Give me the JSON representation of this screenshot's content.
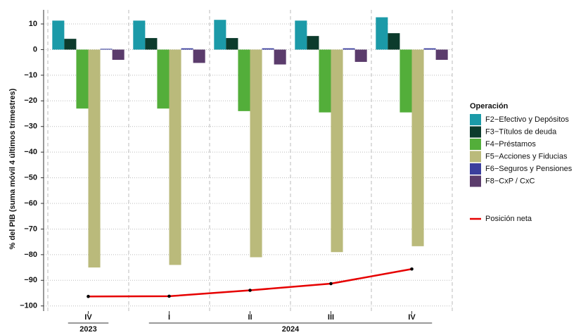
{
  "chart_data": {
    "type": "bar",
    "y_label": "% del PIB (suma móvil 4 últimos trimestres)",
    "legend_title": "Operación",
    "groups": [
      {
        "label": "2023",
        "categories": [
          "IV"
        ]
      },
      {
        "label": "2024",
        "categories": [
          "I",
          "II",
          "III",
          "IV"
        ]
      }
    ],
    "ylim": [
      -102,
      15.5
    ],
    "yticks": [
      {
        "value": 10,
        "label": "10"
      },
      {
        "value": 0,
        "label": "0"
      },
      {
        "value": -10,
        "label": "−10"
      },
      {
        "value": -20,
        "label": "−20"
      },
      {
        "value": -30,
        "label": "−30"
      },
      {
        "value": -40,
        "label": "−40"
      },
      {
        "value": -50,
        "label": "−50"
      },
      {
        "value": -60,
        "label": "−60"
      },
      {
        "value": -70,
        "label": "−70"
      },
      {
        "value": -80,
        "label": "−80"
      },
      {
        "value": -90,
        "label": "−90"
      },
      {
        "value": -100,
        "label": "−100"
      }
    ],
    "grid": true,
    "series": [
      {
        "name": "F2−Efectivo y Depósitos",
        "color": "#1b9aa8",
        "values": [
          11.3,
          11.3,
          11.6,
          11.3,
          12.6
        ]
      },
      {
        "name": "F3−Títulos de deuda",
        "color": "#0c3b2c",
        "values": [
          4.2,
          4.5,
          4.5,
          5.3,
          6.4
        ]
      },
      {
        "name": "F4−Préstamos",
        "color": "#53ae3a",
        "values": [
          -23,
          -23,
          -24,
          -24.5,
          -24.5
        ]
      },
      {
        "name": "F5−Acciones y Fiducias",
        "color": "#baba7b",
        "values": [
          -85,
          -84,
          -81,
          -79,
          -76.7
        ]
      },
      {
        "name": "F6−Seguros y Pensiones",
        "color": "#3b3f9d",
        "values": [
          0.3,
          0.5,
          0.5,
          0.5,
          0.5
        ]
      },
      {
        "name": "F8−CxP / CxC",
        "color": "#5b3c6c",
        "values": [
          -4,
          -5.2,
          -5.8,
          -4.8,
          -4
        ]
      },
      {
        "name": "Posición neta",
        "color": "#e60000",
        "type": "line",
        "values": [
          -96.3,
          -96.2,
          -93.9,
          -91.3,
          -85.6
        ]
      }
    ]
  }
}
